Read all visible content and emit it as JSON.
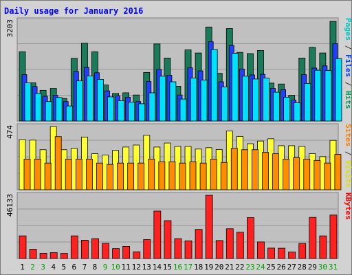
{
  "chart_data": {
    "type": "bar",
    "title": "Daily usage for January 2016",
    "days": [
      "1",
      "2",
      "3",
      "4",
      "5",
      "6",
      "7",
      "8",
      "9",
      "10",
      "11",
      "12",
      "13",
      "14",
      "15",
      "16",
      "17",
      "18",
      "19",
      "20",
      "21",
      "22",
      "23",
      "24",
      "25",
      "26",
      "27",
      "28",
      "29",
      "30",
      "31"
    ],
    "weekend_days": [
      "2",
      "3",
      "9",
      "10",
      "16",
      "17",
      "23",
      "24",
      "30",
      "31"
    ],
    "panels": [
      {
        "id": "hits",
        "max_label": "3203",
        "ymax": 3203,
        "legend": [
          {
            "text": "Pages",
            "color": "#00c8c8"
          },
          {
            "text": " / ",
            "color": "#333333"
          },
          {
            "text": "Files",
            "color": "#0040ff"
          },
          {
            "text": " / ",
            "color": "#333333"
          },
          {
            "text": "Hits",
            "color": "#00a060"
          }
        ],
        "series": [
          {
            "name": "Hits",
            "color": "#1a7a5a",
            "values": [
              2210,
              1220,
              980,
              1040,
              720,
              2000,
              2480,
              2210,
              1150,
              880,
              900,
              830,
              1550,
              2460,
              2010,
              1110,
              2270,
              2170,
              3000,
              1520,
              2950,
              2190,
              2150,
              2250,
              1210,
              1180,
              820,
              2010,
              2350,
              2170,
              3180
            ]
          },
          {
            "name": "Files",
            "color": "#2040ff",
            "values": [
              1480,
              1100,
              790,
              820,
              620,
              1580,
              1710,
              1540,
              960,
              800,
              760,
              620,
              1260,
              1650,
              1460,
              830,
              1700,
              1600,
              2530,
              1250,
              2410,
              1660,
              1470,
              1490,
              1040,
              1000,
              670,
              1480,
              1690,
              1760,
              2470
            ]
          },
          {
            "name": "Pages",
            "color": "#00e0ff",
            "values": [
              1220,
              880,
              620,
              750,
              480,
              1280,
              1440,
              1330,
              770,
              650,
              600,
              550,
              900,
              1430,
              1250,
              700,
              1370,
              1310,
              2280,
              1090,
              2160,
              1430,
              1340,
              1370,
              920,
              760,
              580,
              1200,
              1620,
              1610,
              1990
            ]
          }
        ]
      },
      {
        "id": "visits",
        "max_label": "474",
        "ymax": 474,
        "legend": [
          {
            "text": "Sites",
            "color": "#ff8000"
          },
          {
            "text": " / ",
            "color": "#333333"
          },
          {
            "text": "Visits",
            "color": "#e0e000"
          }
        ],
        "series": [
          {
            "name": "Visits",
            "color": "#ffff33",
            "values": [
              376,
              372,
              300,
              474,
              300,
              310,
              395,
              270,
              260,
              295,
              320,
              335,
              408,
              320,
              350,
              325,
              325,
              305,
              315,
              302,
              440,
              400,
              345,
              365,
              382,
              330,
              330,
              325,
              270,
              248,
              370
            ]
          },
          {
            "name": "Sites",
            "color": "#ff8c00",
            "values": [
              230,
              230,
              200,
              398,
              230,
              230,
              230,
              200,
              190,
              200,
              200,
              200,
              230,
              210,
              210,
              200,
              210,
              200,
              230,
              205,
              310,
              300,
              300,
              280,
              270,
              230,
              240,
              230,
              220,
              200,
              265
            ]
          }
        ]
      },
      {
        "id": "kbytes",
        "max_label": "46133",
        "ymax": 46133,
        "legend": [
          {
            "text": "KBytes",
            "color": "#ff0000"
          }
        ],
        "series": [
          {
            "name": "KBytes",
            "color": "#ff2020",
            "values": [
              16500,
              6800,
              3800,
              4300,
              3700,
              16500,
              13300,
              14500,
              11100,
              7200,
              8800,
              4900,
              13800,
              34600,
              27600,
              14500,
              12900,
              21200,
              46133,
              13100,
              21700,
              19200,
              29800,
              12100,
              7600,
              7500,
              4800,
              11000,
              30000,
              16500,
              31700
            ]
          }
        ]
      }
    ]
  }
}
